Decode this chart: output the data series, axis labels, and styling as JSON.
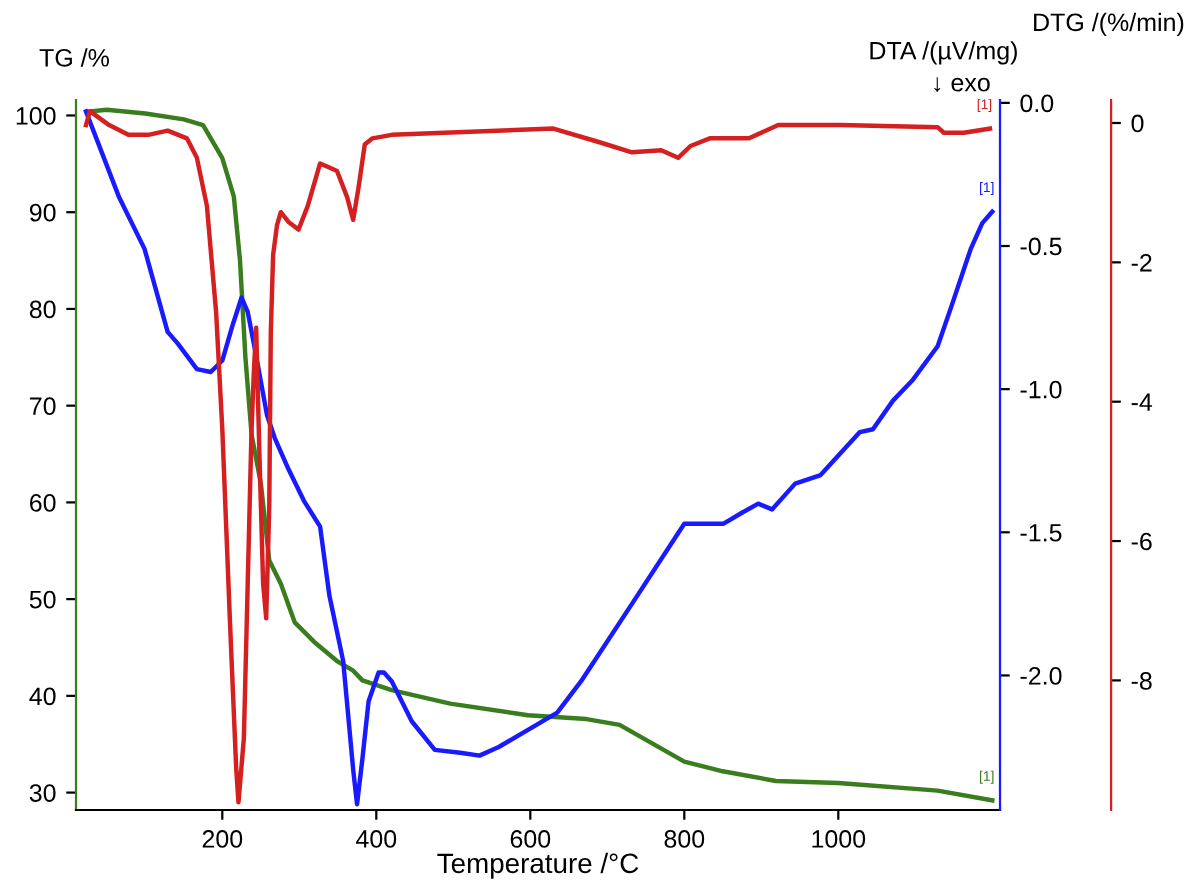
{
  "chart_data": {
    "type": "line",
    "xlabel": "Temperature /°C",
    "ylabel": "TG /%",
    "y2label": "DTA /(µV/mg)",
    "y3label": "DTG /(%/min)",
    "annotations": [
      "↓ exo",
      "[1]",
      "[1]",
      "[1]"
    ],
    "xlim": [
      10,
      1210
    ],
    "xticks": [
      200,
      400,
      600,
      800,
      1000
    ],
    "ylim": [
      28.2,
      101.6
    ],
    "yticks": [
      30,
      40,
      50,
      60,
      70,
      80,
      90,
      100
    ],
    "y2lim": [
      -2.47,
      0.01
    ],
    "y2ticks": [
      {
        "value": 0,
        "label": "0.0"
      },
      {
        "value": -0.5,
        "label": "-0.5"
      },
      {
        "value": -1.0,
        "label": "-1.0"
      },
      {
        "value": -1.5,
        "label": "-1.5"
      },
      {
        "value": -2.0,
        "label": "-2.0"
      }
    ],
    "y3lim": [
      -9.86,
      0.33
    ],
    "y3ticks": [
      0,
      -2,
      -4,
      -6,
      -8
    ],
    "legend": false,
    "grid": false,
    "marker": "none",
    "line_style": "solid",
    "series": [
      {
        "axis": "y",
        "color": "#3a7d1e",
        "x": [
          25,
          50,
          100,
          150,
          175,
          200,
          215,
          223,
          230,
          238,
          250,
          261,
          276,
          294,
          319,
          349,
          370,
          382,
          420,
          496,
          597,
          673,
          716,
          800,
          850,
          919,
          1000,
          1129,
          1200
        ],
        "values": [
          100.4,
          100.6,
          100.2,
          99.6,
          99.0,
          95.6,
          91.6,
          85,
          75,
          67,
          62,
          54,
          51.6,
          47.6,
          45.6,
          43.6,
          42.6,
          41.6,
          40.6,
          39.2,
          38,
          37.6,
          37,
          33.2,
          32.2,
          31.2,
          31,
          30.2,
          29.2
        ]
      },
      {
        "axis": "y2",
        "color": "#1a1aff",
        "x": [
          23,
          66,
          99,
          129,
          142,
          167,
          185,
          200,
          213,
          225,
          233,
          243,
          258,
          268,
          286,
          306,
          327,
          339,
          357,
          370,
          375,
          382,
          390,
          403,
          410,
          420,
          446,
          476,
          509,
          534,
          559,
          597,
          635,
          666,
          732,
          800,
          851,
          876,
          896,
          914,
          944,
          977,
          1028,
          1045,
          1071,
          1096,
          1129,
          1147,
          1172,
          1187,
          1200
        ],
        "values": [
          -0.03,
          -0.33,
          -0.51,
          -0.8,
          -0.84,
          -0.93,
          -0.94,
          -0.9,
          -0.78,
          -0.68,
          -0.73,
          -0.87,
          -1.09,
          -1.17,
          -1.28,
          -1.39,
          -1.48,
          -1.72,
          -1.95,
          -2.33,
          -2.45,
          -2.29,
          -2.09,
          -1.99,
          -1.99,
          -2.02,
          -2.16,
          -2.26,
          -2.27,
          -2.28,
          -2.25,
          -2.19,
          -2.13,
          -2.02,
          -1.75,
          -1.47,
          -1.47,
          -1.43,
          -1.4,
          -1.42,
          -1.33,
          -1.3,
          -1.15,
          -1.14,
          -1.04,
          -0.97,
          -0.85,
          -0.71,
          -0.51,
          -0.42,
          -0.38
        ]
      },
      {
        "axis": "y3",
        "color": "#d42020",
        "x": [
          23,
          28,
          53,
          78,
          104,
          129,
          154,
          167,
          180,
          192,
          200,
          210,
          218,
          221,
          228,
          233,
          238,
          241,
          244,
          248,
          253,
          257,
          261,
          263,
          266,
          271,
          276,
          286,
          299,
          311,
          327,
          339,
          349,
          362,
          370,
          377,
          385,
          395,
          420,
          630,
          691,
          732,
          770,
          792,
          808,
          833,
          884,
          922,
          1003,
          1129,
          1137,
          1163,
          1197
        ],
        "values": [
          -0.03,
          0.17,
          -0.03,
          -0.17,
          -0.17,
          -0.11,
          -0.22,
          -0.5,
          -1.19,
          -2.72,
          -4.39,
          -7.17,
          -9.25,
          -9.75,
          -8.83,
          -6.61,
          -4.39,
          -3.56,
          -2.94,
          -4.67,
          -6.61,
          -7.11,
          -5.5,
          -3,
          -1.89,
          -1.47,
          -1.28,
          -1.42,
          -1.53,
          -1.19,
          -0.58,
          -0.64,
          -0.69,
          -1.06,
          -1.39,
          -0.92,
          -0.31,
          -0.22,
          -0.17,
          -0.08,
          -0.28,
          -0.42,
          -0.39,
          -0.5,
          -0.33,
          -0.22,
          -0.22,
          -0.03,
          -0.03,
          -0.06,
          -0.14,
          -0.14,
          -0.08
        ]
      }
    ]
  }
}
